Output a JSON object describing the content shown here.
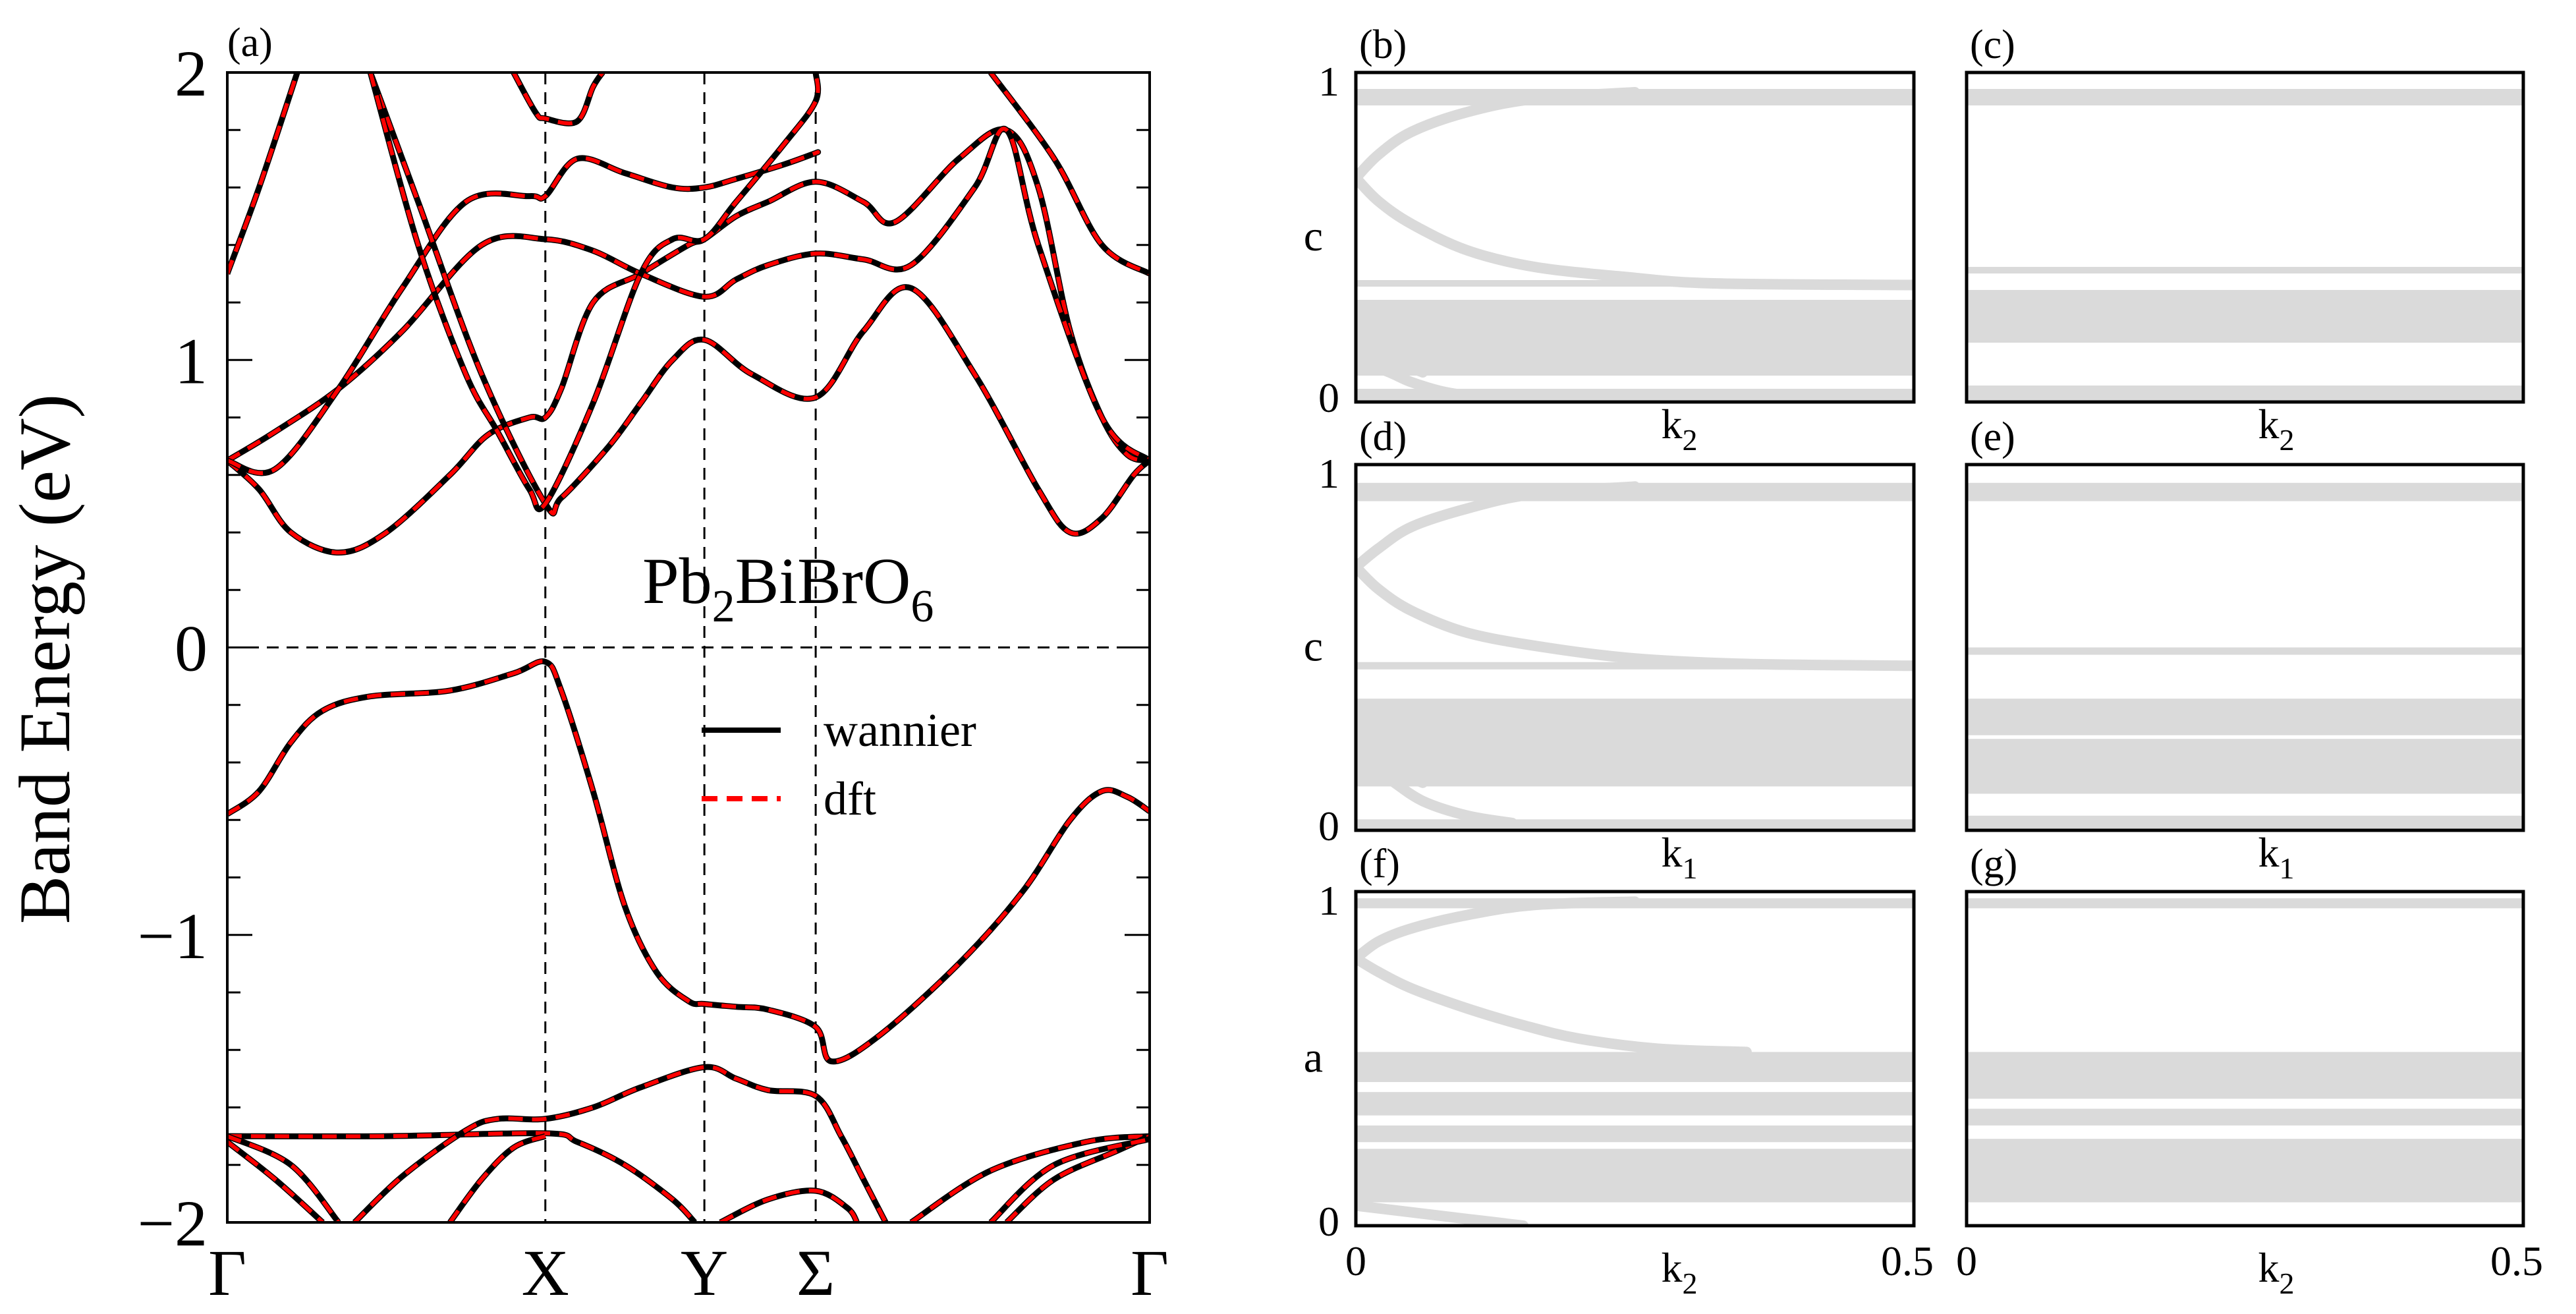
{
  "chart_data": [
    {
      "panel": "(a)",
      "type": "line",
      "ylabel": "Band Energy (eV)",
      "ylim": [
        -2,
        2
      ],
      "yticks": [
        {
          "value": 2,
          "label": "2"
        },
        {
          "value": 1,
          "label": "1"
        },
        {
          "value": 0,
          "label": "0"
        },
        {
          "value": -1,
          "label": "−1"
        },
        {
          "value": -2,
          "label": "−2"
        }
      ],
      "kpoints": [
        {
          "label": "Γ",
          "x": 0
        },
        {
          "label": "X",
          "x": 1
        },
        {
          "label": "Y",
          "x": 1.5
        },
        {
          "label": "Σ",
          "x": 1.85
        },
        {
          "label": "Γ",
          "x": 2.9
        }
      ],
      "xlim": [
        0,
        2.9
      ],
      "annotation": {
        "base": "Pb",
        "s1": "2",
        "mid": "BiBrO",
        "s2": "6"
      },
      "legend": {
        "position": "center-right",
        "entries": [
          "wannier",
          "dft"
        ]
      },
      "series": [
        {
          "name": "wannier",
          "style": "solid",
          "color": "#000000"
        },
        {
          "name": "dft",
          "style": "dashed",
          "color": "#ff0000"
        }
      ],
      "bands": [
        [
          [
            0,
            -0.58
          ],
          [
            0.1,
            -0.5
          ],
          [
            0.2,
            -0.33
          ],
          [
            0.3,
            -0.22
          ],
          [
            0.45,
            -0.17
          ],
          [
            0.7,
            -0.15
          ],
          [
            0.9,
            -0.09
          ],
          [
            1,
            -0.05
          ],
          [
            1.05,
            -0.15
          ],
          [
            1.15,
            -0.5
          ],
          [
            1.25,
            -0.9
          ],
          [
            1.35,
            -1.13
          ],
          [
            1.45,
            -1.23
          ],
          [
            1.5,
            -1.24
          ],
          [
            1.6,
            -1.25
          ],
          [
            1.7,
            -1.26
          ],
          [
            1.85,
            -1.32
          ],
          [
            1.9,
            -1.44
          ],
          [
            2.05,
            -1.35
          ],
          [
            2.3,
            -1.1
          ],
          [
            2.5,
            -0.85
          ],
          [
            2.65,
            -0.6
          ],
          [
            2.75,
            -0.5
          ],
          [
            2.83,
            -0.52
          ],
          [
            2.9,
            -0.57
          ]
        ],
        [
          [
            0,
            -1.7
          ],
          [
            0.5,
            -1.7
          ],
          [
            1,
            -1.69
          ],
          [
            1.1,
            -1.72
          ],
          [
            1.25,
            -1.8
          ],
          [
            1.4,
            -1.92
          ],
          [
            1.47,
            -2.0
          ]
        ],
        [
          [
            0.4,
            -2.0
          ],
          [
            0.55,
            -1.84
          ],
          [
            0.75,
            -1.68
          ],
          [
            0.85,
            -1.64
          ],
          [
            1,
            -1.64
          ],
          [
            1.15,
            -1.6
          ],
          [
            1.3,
            -1.53
          ],
          [
            1.5,
            -1.46
          ],
          [
            1.6,
            -1.5
          ],
          [
            1.7,
            -1.54
          ],
          [
            1.85,
            -1.56
          ],
          [
            1.93,
            -1.7
          ],
          [
            2.0,
            -1.85
          ],
          [
            2.07,
            -2.0
          ]
        ],
        [
          [
            0.7,
            -2.0
          ],
          [
            0.8,
            -1.85
          ],
          [
            0.9,
            -1.74
          ],
          [
            1,
            -1.7
          ]
        ],
        [
          [
            1.55,
            -2.0
          ],
          [
            1.7,
            -1.92
          ],
          [
            1.85,
            -1.89
          ],
          [
            1.95,
            -1.95
          ],
          [
            1.98,
            -2.0
          ]
        ],
        [
          [
            0,
            -1.72
          ],
          [
            0.15,
            -1.85
          ],
          [
            0.3,
            -2.0
          ]
        ],
        [
          [
            0,
            -1.7
          ],
          [
            0.2,
            -1.8
          ],
          [
            0.35,
            -2.0
          ]
        ],
        [
          [
            2.15,
            -2.0
          ],
          [
            2.4,
            -1.82
          ],
          [
            2.7,
            -1.72
          ],
          [
            2.9,
            -1.7
          ]
        ],
        [
          [
            2.45,
            -2.0
          ],
          [
            2.6,
            -1.85
          ],
          [
            2.8,
            -1.75
          ],
          [
            2.9,
            -1.7
          ]
        ],
        [
          [
            2.4,
            -2.0
          ],
          [
            2.6,
            -1.8
          ],
          [
            2.9,
            -1.71
          ]
        ],
        [
          [
            0,
            0.65
          ],
          [
            0.1,
            0.55
          ],
          [
            0.2,
            0.4
          ],
          [
            0.35,
            0.33
          ],
          [
            0.5,
            0.4
          ],
          [
            0.7,
            0.6
          ],
          [
            0.82,
            0.74
          ],
          [
            0.95,
            0.8
          ],
          [
            1,
            0.8
          ],
          [
            1.05,
            0.9
          ],
          [
            1.15,
            1.2
          ],
          [
            1.3,
            1.3
          ],
          [
            1.45,
            1.4
          ],
          [
            1.5,
            1.42
          ],
          [
            1.6,
            1.5
          ],
          [
            1.7,
            1.55
          ],
          [
            1.85,
            1.62
          ],
          [
            2.0,
            1.55
          ],
          [
            2.1,
            1.48
          ],
          [
            2.3,
            1.7
          ],
          [
            2.45,
            1.8
          ],
          [
            2.55,
            1.6
          ],
          [
            2.65,
            1.1
          ],
          [
            2.75,
            0.8
          ],
          [
            2.83,
            0.67
          ],
          [
            2.9,
            0.65
          ]
        ],
        [
          [
            0,
            0.65
          ],
          [
            0.15,
            0.75
          ],
          [
            0.35,
            0.9
          ],
          [
            0.55,
            1.1
          ],
          [
            0.8,
            1.4
          ],
          [
            1,
            1.42
          ],
          [
            1.15,
            1.38
          ],
          [
            1.3,
            1.3
          ],
          [
            1.5,
            1.22
          ],
          [
            1.6,
            1.28
          ],
          [
            1.7,
            1.33
          ],
          [
            1.85,
            1.37
          ],
          [
            2.0,
            1.35
          ],
          [
            2.15,
            1.33
          ],
          [
            2.35,
            1.6
          ],
          [
            2.45,
            1.8
          ],
          [
            2.55,
            1.4
          ],
          [
            2.75,
            0.8
          ],
          [
            2.9,
            0.65
          ]
        ],
        [
          [
            0,
            0.65
          ],
          [
            0.15,
            0.62
          ],
          [
            0.35,
            0.9
          ],
          [
            0.55,
            1.25
          ],
          [
            0.75,
            1.55
          ],
          [
            0.95,
            1.57
          ],
          [
            1,
            1.57
          ],
          [
            1.1,
            1.7
          ],
          [
            1.25,
            1.65
          ],
          [
            1.4,
            1.6
          ],
          [
            1.5,
            1.6
          ],
          [
            1.6,
            1.63
          ],
          [
            1.75,
            1.68
          ],
          [
            1.85,
            1.72
          ],
          [
            1.85,
            1.72
          ]
        ],
        [
          [
            0.45,
            2.0
          ],
          [
            0.6,
            1.55
          ],
          [
            0.8,
            0.95
          ],
          [
            1,
            0.5
          ],
          [
            1.05,
            0.52
          ],
          [
            1.2,
            0.7
          ],
          [
            1.3,
            0.85
          ],
          [
            1.4,
            1.0
          ],
          [
            1.5,
            1.07
          ],
          [
            1.65,
            0.95
          ],
          [
            1.85,
            0.87
          ],
          [
            2.0,
            1.1
          ],
          [
            2.15,
            1.25
          ],
          [
            2.35,
            0.95
          ],
          [
            2.55,
            0.55
          ],
          [
            2.65,
            0.4
          ],
          [
            2.75,
            0.45
          ],
          [
            2.85,
            0.6
          ],
          [
            2.9,
            0.65
          ]
        ],
        [
          [
            0.45,
            2.0
          ],
          [
            0.6,
            1.4
          ],
          [
            0.75,
            0.95
          ],
          [
            0.85,
            0.75
          ],
          [
            0.95,
            0.55
          ],
          [
            1,
            0.5
          ],
          [
            1.15,
            0.85
          ],
          [
            1.3,
            1.3
          ],
          [
            1.4,
            1.42
          ],
          [
            1.5,
            1.42
          ],
          [
            1.6,
            1.55
          ],
          [
            1.75,
            1.75
          ],
          [
            1.85,
            1.9
          ],
          [
            1.85,
            2.0
          ]
        ],
        [
          [
            0,
            1.3
          ],
          [
            0.1,
            1.6
          ],
          [
            0.22,
            2.0
          ]
        ],
        [
          [
            0.9,
            2.0
          ],
          [
            0.97,
            1.86
          ],
          [
            1,
            1.84
          ],
          [
            1.1,
            1.83
          ],
          [
            1.15,
            1.95
          ],
          [
            1.18,
            2.0
          ]
        ],
        [
          [
            2.4,
            2.0
          ],
          [
            2.6,
            1.7
          ],
          [
            2.75,
            1.4
          ],
          [
            2.9,
            1.3
          ]
        ]
      ]
    },
    {
      "panel": "(b)",
      "type": "area",
      "ylabel": "c",
      "xlabel": "k₂",
      "xlabel_base": "k",
      "xlabel_sub": "2",
      "ylim": [
        0,
        1
      ],
      "yticks": [
        {
          "value": 1,
          "label": "1"
        },
        {
          "value": 0,
          "label": "0"
        }
      ],
      "bands": [
        [
          0.9,
          0.95
        ],
        [
          0.35,
          0.37
        ],
        [
          0.08,
          0.31
        ],
        [
          0.0,
          0.04
        ]
      ],
      "edge_curves": [
        [
          [
            0,
            0.68
          ],
          [
            0.02,
            0.75
          ],
          [
            0.05,
            0.82
          ],
          [
            0.1,
            0.88
          ],
          [
            0.16,
            0.92
          ],
          [
            0.25,
            0.94
          ]
        ],
        [
          [
            0,
            0.68
          ],
          [
            0.02,
            0.61
          ],
          [
            0.05,
            0.54
          ],
          [
            0.1,
            0.46
          ],
          [
            0.16,
            0.41
          ],
          [
            0.24,
            0.38
          ],
          [
            0.32,
            0.36
          ],
          [
            0.5,
            0.355
          ]
        ],
        [
          [
            0,
            0.18
          ],
          [
            0.03,
            0.13
          ],
          [
            0.06,
            0.09
          ]
        ],
        [
          [
            0,
            0.13
          ],
          [
            0.03,
            0.09
          ],
          [
            0.05,
            0.06
          ],
          [
            0.08,
            0.03
          ],
          [
            0.12,
            0.01
          ]
        ]
      ]
    },
    {
      "panel": "(c)",
      "type": "area",
      "ylabel": "",
      "xlabel": "k₂",
      "xlabel_base": "k",
      "xlabel_sub": "2",
      "ylim": [
        0,
        1
      ],
      "bands": [
        [
          0.9,
          0.95
        ],
        [
          0.39,
          0.41
        ],
        [
          0.18,
          0.34
        ],
        [
          0.0,
          0.05
        ]
      ],
      "edge_curves": []
    },
    {
      "panel": "(d)",
      "type": "area",
      "ylabel": "c",
      "xlabel": "k₁",
      "xlabel_base": "k",
      "xlabel_sub": "1",
      "ylim": [
        0,
        1
      ],
      "yticks": [
        {
          "value": 1,
          "label": "1"
        },
        {
          "value": 0,
          "label": "0"
        }
      ],
      "bands": [
        [
          0.9,
          0.95
        ],
        [
          0.44,
          0.46
        ],
        [
          0.12,
          0.36
        ],
        [
          0.0,
          0.03
        ]
      ],
      "edge_curves": [
        [
          [
            0,
            0.72
          ],
          [
            0.02,
            0.77
          ],
          [
            0.05,
            0.83
          ],
          [
            0.1,
            0.88
          ],
          [
            0.16,
            0.92
          ],
          [
            0.25,
            0.94
          ]
        ],
        [
          [
            0,
            0.72
          ],
          [
            0.02,
            0.66
          ],
          [
            0.05,
            0.6
          ],
          [
            0.1,
            0.54
          ],
          [
            0.17,
            0.5
          ],
          [
            0.25,
            0.47
          ],
          [
            0.35,
            0.455
          ],
          [
            0.5,
            0.45
          ]
        ],
        [
          [
            0,
            0.22
          ],
          [
            0.03,
            0.17
          ],
          [
            0.06,
            0.13
          ]
        ],
        [
          [
            0,
            0.2
          ],
          [
            0.03,
            0.14
          ],
          [
            0.06,
            0.08
          ],
          [
            0.1,
            0.04
          ],
          [
            0.14,
            0.02
          ]
        ]
      ]
    },
    {
      "panel": "(e)",
      "type": "area",
      "ylabel": "",
      "xlabel": "k₁",
      "xlabel_base": "k",
      "xlabel_sub": "1",
      "ylim": [
        0,
        1
      ],
      "bands": [
        [
          0.9,
          0.95
        ],
        [
          0.48,
          0.5
        ],
        [
          0.26,
          0.36
        ],
        [
          0.1,
          0.25
        ],
        [
          0.0,
          0.04
        ]
      ],
      "edge_curves": []
    },
    {
      "panel": "(f)",
      "type": "area",
      "ylabel": "a",
      "xlabel": "k₂",
      "xlabel_base": "k",
      "xlabel_sub": "2",
      "ylim": [
        0,
        1
      ],
      "yticks": [
        {
          "value": 1,
          "label": "1"
        },
        {
          "value": 0,
          "label": "0"
        }
      ],
      "xticks": [
        {
          "value": 0,
          "label": "0"
        },
        {
          "value": 0.5,
          "label": "0.5"
        }
      ],
      "bands": [
        [
          0.95,
          0.98
        ],
        [
          0.43,
          0.52
        ],
        [
          0.33,
          0.4
        ],
        [
          0.25,
          0.3
        ],
        [
          0.07,
          0.23
        ]
      ],
      "edge_curves": [
        [
          [
            0,
            0.8
          ],
          [
            0.02,
            0.85
          ],
          [
            0.05,
            0.89
          ],
          [
            0.1,
            0.93
          ],
          [
            0.16,
            0.96
          ],
          [
            0.25,
            0.97
          ]
        ],
        [
          [
            0,
            0.8
          ],
          [
            0.02,
            0.76
          ],
          [
            0.05,
            0.71
          ],
          [
            0.1,
            0.65
          ],
          [
            0.15,
            0.6
          ],
          [
            0.2,
            0.56
          ],
          [
            0.27,
            0.53
          ],
          [
            0.35,
            0.52
          ]
        ],
        [
          [
            0,
            0.06
          ],
          [
            0.05,
            0.04
          ],
          [
            0.1,
            0.02
          ],
          [
            0.15,
            0.0
          ]
        ]
      ]
    },
    {
      "panel": "(g)",
      "type": "area",
      "ylabel": "",
      "xlabel": "k₂",
      "xlabel_base": "k",
      "xlabel_sub": "2",
      "ylim": [
        0,
        1
      ],
      "xticks": [
        {
          "value": 0,
          "label": "0"
        },
        {
          "value": 0.5,
          "label": "0.5"
        }
      ],
      "bands": [
        [
          0.95,
          0.98
        ],
        [
          0.38,
          0.52
        ],
        [
          0.3,
          0.35
        ],
        [
          0.07,
          0.26
        ]
      ],
      "edge_curves": []
    }
  ]
}
